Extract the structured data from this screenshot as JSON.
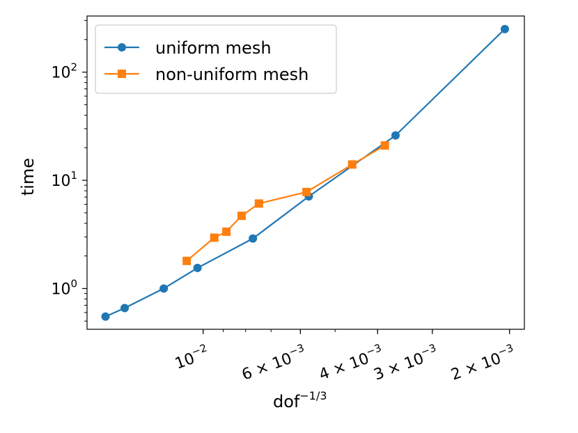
{
  "chart_data": {
    "type": "line",
    "xscale": "log-reversed",
    "yscale": "log",
    "xlabel": {
      "base": "dof",
      "exp": "−1/3"
    },
    "ylabel": "time",
    "xlim": [
      0.0184,
      0.00185
    ],
    "ylim": [
      0.42,
      330
    ],
    "grid": false,
    "legend": "top-left",
    "x_ticks": [
      {
        "value": 0.01,
        "base": "10",
        "exp": "−2"
      },
      {
        "value": 0.006,
        "base": "6 × 10",
        "exp": "−3"
      },
      {
        "value": 0.004,
        "base": "4 × 10",
        "exp": "−3"
      },
      {
        "value": 0.003,
        "base": "3 × 10",
        "exp": "−3"
      },
      {
        "value": 0.002,
        "base": "2 × 10",
        "exp": "−3"
      }
    ],
    "y_ticks": [
      {
        "value": 1,
        "base": "10",
        "exp": "0"
      },
      {
        "value": 10,
        "base": "10",
        "exp": "1"
      },
      {
        "value": 100,
        "base": "10",
        "exp": "2"
      }
    ],
    "series": [
      {
        "name": "uniform mesh",
        "color": "#1f77b4",
        "marker": "circle",
        "x": [
          0.0167,
          0.0151,
          0.0123,
          0.0103,
          0.0077,
          0.00574,
          0.00364,
          0.00205
        ],
        "y": [
          0.55,
          0.66,
          1.0,
          1.55,
          2.9,
          7.1,
          26,
          250
        ]
      },
      {
        "name": "non-uniform mesh",
        "color": "#ff7f0e",
        "marker": "square",
        "x": [
          0.0109,
          0.00943,
          0.00885,
          0.00817,
          0.00746,
          0.00581,
          0.00457,
          0.00385
        ],
        "y": [
          1.8,
          2.95,
          3.35,
          4.7,
          6.1,
          7.8,
          14,
          21
        ]
      }
    ]
  }
}
